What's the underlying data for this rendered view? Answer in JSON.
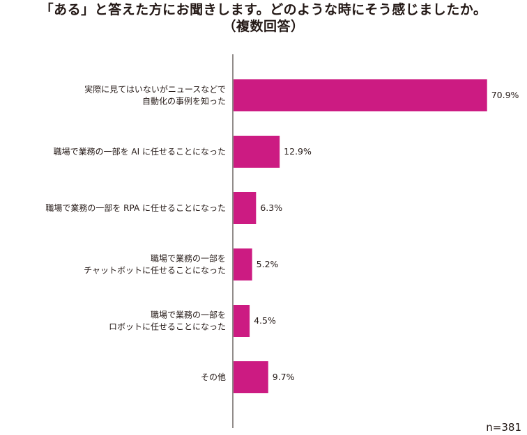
{
  "chart_data": {
    "type": "bar",
    "orientation": "horizontal",
    "title": "「ある」と答えた方にお聞きします。どのような時にそう感じましたか。",
    "subtitle": "（複数回答）",
    "categories": [
      [
        "実際に見てはいないがニュースなどで",
        "自動化の事例を知った"
      ],
      [
        "職場で業務の一部を AI に任せることになった"
      ],
      [
        "職場で業務の一部を RPA に任せることになった"
      ],
      [
        "職場で業務の一部を",
        "チャットボットに任せることになった"
      ],
      [
        "職場で業務の一部を",
        "ロボットに任せることになった"
      ],
      [
        "その他"
      ]
    ],
    "values": [
      70.9,
      12.9,
      6.3,
      5.2,
      4.5,
      9.7
    ],
    "value_labels": [
      "70.9%",
      "12.9%",
      "6.3%",
      "5.2%",
      "4.5%",
      "9.7%"
    ],
    "xlim": [
      0,
      100
    ],
    "bar_color": "#cc1b82",
    "grid": false,
    "legend": "none"
  },
  "footnote": "n=381"
}
